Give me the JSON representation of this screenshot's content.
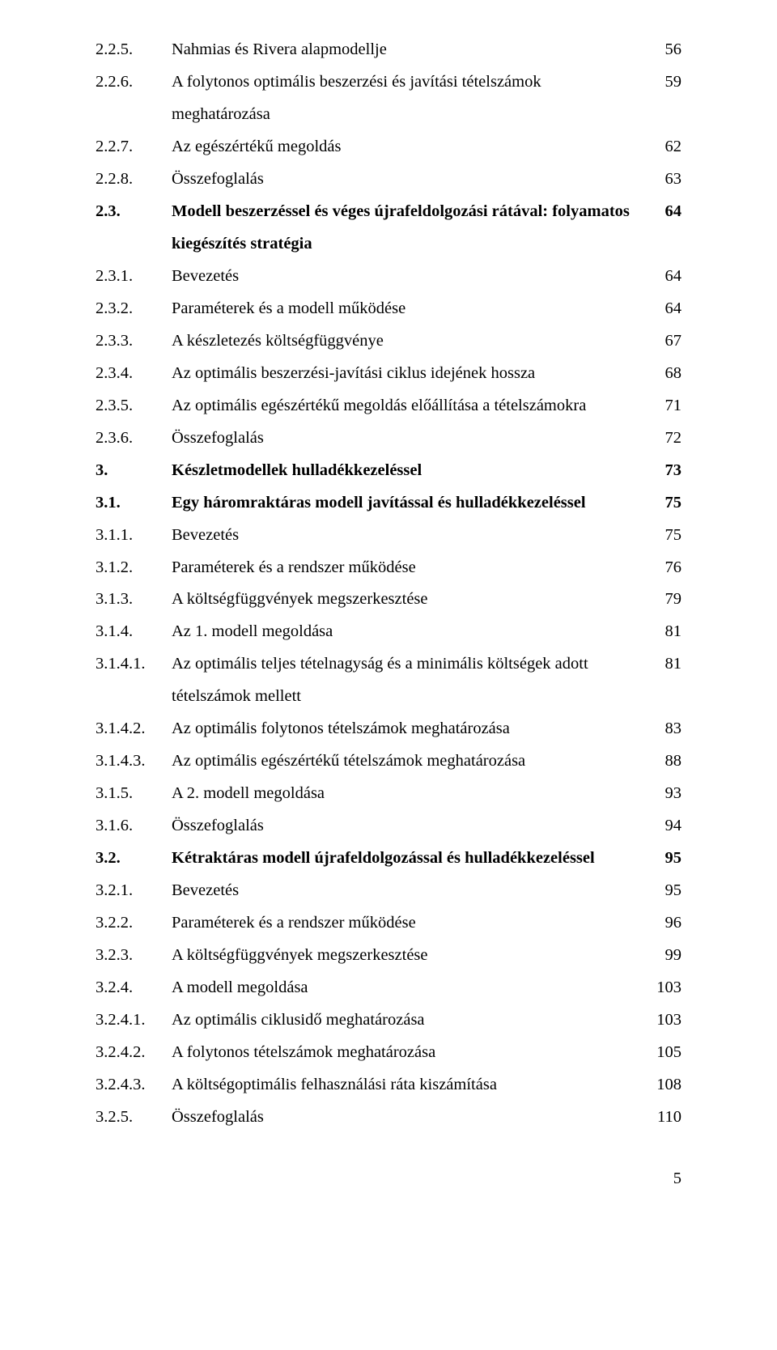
{
  "toc": [
    {
      "num": "2.2.5.",
      "title": "Nahmias és Rivera alapmodellje",
      "page": "56",
      "bold": false
    },
    {
      "num": "2.2.6.",
      "title": "A folytonos optimális beszerzési és javítási tételszámok meghatározása",
      "page": "59",
      "bold": false
    },
    {
      "num": "2.2.7.",
      "title": "Az egészértékű megoldás",
      "page": "62",
      "bold": false
    },
    {
      "num": "2.2.8.",
      "title": "Összefoglalás",
      "page": "63",
      "bold": false
    },
    {
      "num": "2.3.",
      "title": "Modell beszerzéssel és véges újrafeldolgozási rátával: folyamatos kiegészítés stratégia",
      "page": "64",
      "bold": true,
      "wrap": true
    },
    {
      "num": "2.3.1.",
      "title": "Bevezetés",
      "page": "64",
      "bold": false
    },
    {
      "num": "2.3.2.",
      "title": "Paraméterek és a modell működése",
      "page": "64",
      "bold": false
    },
    {
      "num": "2.3.3.",
      "title": "A készletezés költségfüggvénye",
      "page": "67",
      "bold": false
    },
    {
      "num": "2.3.4.",
      "title": "Az optimális beszerzési-javítási ciklus idejének hossza",
      "page": "68",
      "bold": false
    },
    {
      "num": "2.3.5.",
      "title": "Az optimális egészértékű megoldás előállítása a tételszámokra",
      "page": "71",
      "bold": false
    },
    {
      "num": "2.3.6.",
      "title": "Összefoglalás",
      "page": "72",
      "bold": false
    },
    {
      "num": "3.",
      "title": "Készletmodellek hulladékkezeléssel",
      "page": "73",
      "bold": true
    },
    {
      "num": "3.1.",
      "title": "Egy háromraktáras modell javítással és hulladékkezeléssel",
      "page": "75",
      "bold": true
    },
    {
      "num": "3.1.1.",
      "title": "Bevezetés",
      "page": "75",
      "bold": false
    },
    {
      "num": "3.1.2.",
      "title": "Paraméterek és a rendszer működése",
      "page": "76",
      "bold": false
    },
    {
      "num": "3.1.3.",
      "title": "A költségfüggvények megszerkesztése",
      "page": "79",
      "bold": false
    },
    {
      "num": "3.1.4.",
      "title": "Az 1. modell megoldása",
      "page": "81",
      "bold": false
    },
    {
      "num": "3.1.4.1.",
      "title": "Az optimális teljes tételnagyság és a minimális költségek adott tételszámok mellett",
      "page": "81",
      "bold": false,
      "wrap": true
    },
    {
      "num": "3.1.4.2.",
      "title": "Az optimális folytonos tételszámok meghatározása",
      "page": "83",
      "bold": false
    },
    {
      "num": "3.1.4.3.",
      "title": "Az optimális egészértékű tételszámok meghatározása",
      "page": "88",
      "bold": false
    },
    {
      "num": "3.1.5.",
      "title": "A 2. modell megoldása",
      "page": "93",
      "bold": false
    },
    {
      "num": "3.1.6.",
      "title": "Összefoglalás",
      "page": "94",
      "bold": false
    },
    {
      "num": "3.2.",
      "title": "Kétraktáras modell újrafeldolgozással és hulladékkezeléssel",
      "page": "95",
      "bold": true
    },
    {
      "num": "3.2.1.",
      "title": "Bevezetés",
      "page": "95",
      "bold": false
    },
    {
      "num": "3.2.2.",
      "title": "Paraméterek és a rendszer működése",
      "page": "96",
      "bold": false
    },
    {
      "num": "3.2.3.",
      "title": "A költségfüggvények megszerkesztése",
      "page": "99",
      "bold": false
    },
    {
      "num": "3.2.4.",
      "title": "A modell megoldása",
      "page": "103",
      "bold": false
    },
    {
      "num": "3.2.4.1.",
      "title": "Az optimális ciklusidő meghatározása",
      "page": "103",
      "bold": false
    },
    {
      "num": "3.2.4.2.",
      "title": "A folytonos tételszámok meghatározása",
      "page": "105",
      "bold": false
    },
    {
      "num": "3.2.4.3.",
      "title": "A költségoptimális felhasználási ráta  kiszámítása",
      "page": "108",
      "bold": false
    },
    {
      "num": "3.2.5.",
      "title": "Összefoglalás",
      "page": "110",
      "bold": false
    }
  ],
  "footer": {
    "pageNumber": "5"
  },
  "style": {
    "background": "#ffffff",
    "textColor": "#000000",
    "fontSizePt": 15.5,
    "lineHeight": 1.95,
    "numColWidth": 88
  }
}
